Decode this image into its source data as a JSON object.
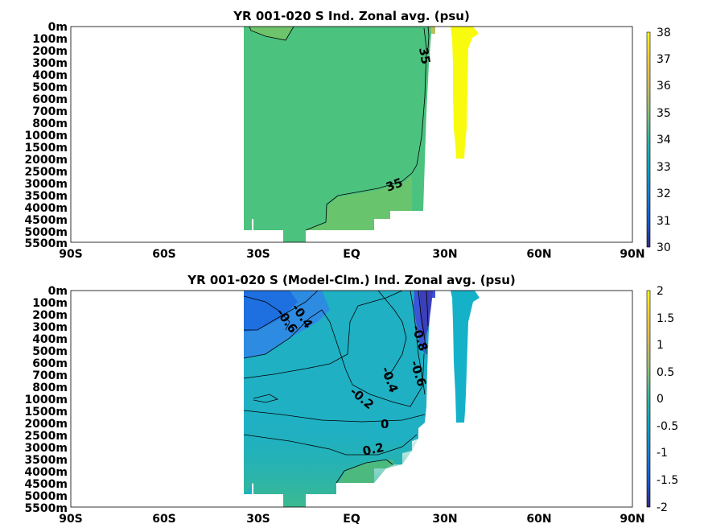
{
  "chart_data": [
    {
      "type": "heatmap",
      "title": "YR 001-020 S Ind. Zonal avg. (psu)",
      "x_ticks": [
        "90S",
        "60S",
        "30S",
        "EQ",
        "30N",
        "60N",
        "90N"
      ],
      "x_values": [
        -90,
        -60,
        -30,
        0,
        30,
        60,
        90
      ],
      "y_ticks": [
        "0m",
        "100m",
        "200m",
        "300m",
        "400m",
        "500m",
        "600m",
        "700m",
        "800m",
        "1000m",
        "1500m",
        "2000m",
        "2500m",
        "3000m",
        "3500m",
        "4000m",
        "4500m",
        "5000m",
        "5500m"
      ],
      "colorbar": {
        "min": 30,
        "max": 38,
        "ticks": [
          "30",
          "31",
          "32",
          "33",
          "34",
          "35",
          "36",
          "37",
          "38"
        ]
      },
      "contour_labels": [
        "35",
        "35"
      ],
      "field_summary": {
        "interior_value": 34.8,
        "deep_south_value": 35.0,
        "surface_south_value": 35.1,
        "northern_basin_value": 38.0,
        "domain_lon_range": [
          -35,
          42
        ]
      }
    },
    {
      "type": "heatmap",
      "title": "YR 001-020 S (Model-Clm.) Ind. Zonal avg. (psu)",
      "x_ticks": [
        "90S",
        "60S",
        "30S",
        "EQ",
        "30N",
        "60N",
        "90N"
      ],
      "x_values": [
        -90,
        -60,
        -30,
        0,
        30,
        60,
        90
      ],
      "y_ticks": [
        "0m",
        "100m",
        "200m",
        "300m",
        "400m",
        "500m",
        "600m",
        "700m",
        "800m",
        "1000m",
        "1500m",
        "2000m",
        "2500m",
        "3000m",
        "3500m",
        "4000m",
        "4500m",
        "5000m",
        "5500m"
      ],
      "colorbar": {
        "min": -2,
        "max": 2,
        "ticks": [
          "-2",
          "-1.5",
          "-1",
          "-0.5",
          "0",
          "0.5",
          "1",
          "1.5",
          "2"
        ]
      },
      "contour_labels": [
        "-0.6",
        "-0.4",
        "-0.2",
        "0",
        "0.2",
        "-0.4",
        "-0.6",
        "-0.8"
      ],
      "field_summary": {
        "upper_south_value": -0.7,
        "interior_value": -0.15,
        "deep_value": 0.3,
        "northern_basin_value": -0.3,
        "domain_lon_range": [
          -35,
          42
        ]
      }
    }
  ],
  "colors": {
    "parula": [
      "#352a87",
      "#0f5cdd",
      "#1481d6",
      "#06a4ca",
      "#2eb7a4",
      "#87bf77",
      "#d1bb59",
      "#fec832",
      "#f9fb0e"
    ]
  }
}
